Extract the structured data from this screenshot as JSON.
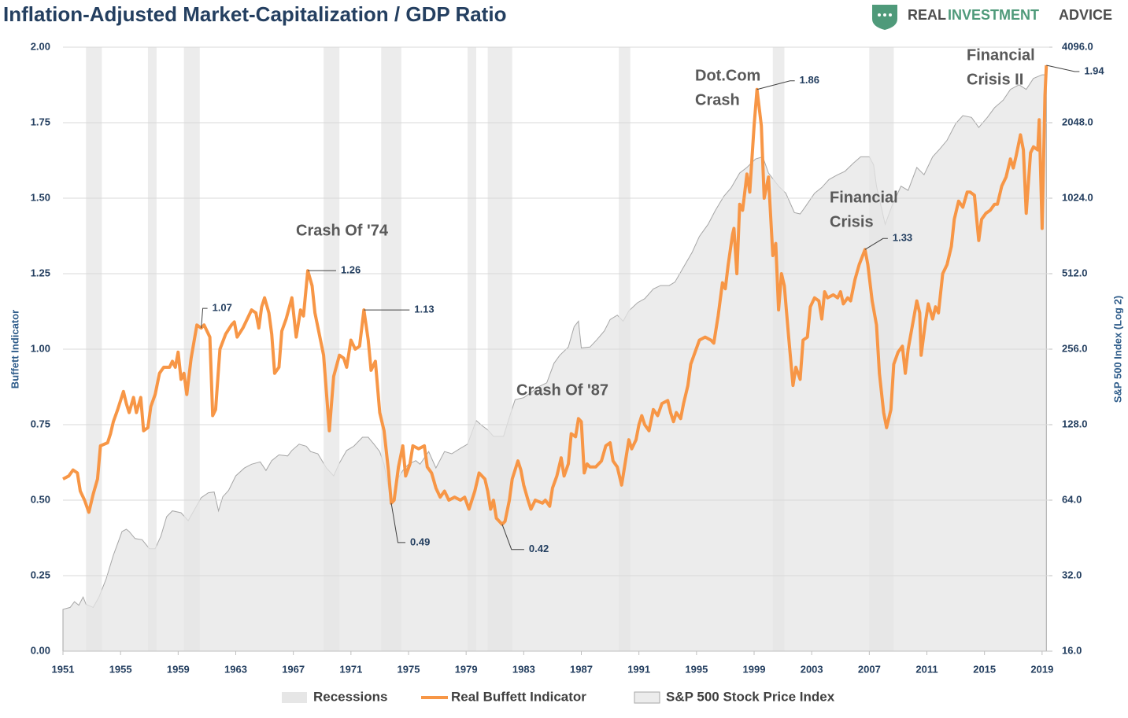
{
  "header": {
    "logo": [
      "REAL",
      "INVESTMENT",
      "ADVICE"
    ]
  },
  "chart_data": {
    "type": "line",
    "title": "Inflation-Adjusted Market-Capitalization / GDP Ratio",
    "ylabel": "Buffett Indicator",
    "y2label": "S&P 500 Index (Log 2)",
    "xlim": [
      1951,
      2019.5
    ],
    "xticks": [
      1951,
      1955,
      1959,
      1963,
      1967,
      1971,
      1975,
      1979,
      1983,
      1987,
      1991,
      1995,
      1999,
      2003,
      2007,
      2011,
      2015,
      2019
    ],
    "ylim": [
      0,
      2
    ],
    "yticks": [
      {
        "value": 0,
        "label": "0.00"
      },
      0.25,
      {
        "value": 0.5,
        "label": "0.50"
      },
      0.75,
      {
        "value": 1,
        "label": "1.00"
      },
      1.25,
      {
        "value": 1.5,
        "label": "1.50"
      },
      1.75,
      {
        "value": 2,
        "label": "2.00"
      }
    ],
    "y2lim": [
      16,
      4096
    ],
    "y2scale": "log",
    "y2ticks": [
      {
        "value": 16,
        "label": "16.0"
      },
      {
        "value": 32,
        "label": "32.0"
      },
      {
        "value": 64,
        "label": "64.0"
      },
      {
        "value": 128,
        "label": "128.0"
      },
      {
        "value": 256,
        "label": "256.0"
      },
      {
        "value": 512,
        "label": "512.0"
      },
      {
        "value": 1024,
        "label": "1024.0"
      },
      {
        "value": 2048,
        "label": "2048.0"
      },
      {
        "value": 4096,
        "label": "4096.0"
      }
    ],
    "grid": true,
    "legend": "bottom",
    "series": [
      {
        "name": "Recessions",
        "type": "band",
        "color": "#e6e6e6",
        "ranges": [
          [
            1952.6,
            1953.7
          ],
          [
            1956.9,
            1957.5
          ],
          [
            1959.4,
            1960.5
          ],
          [
            1969.1,
            1970.2
          ],
          [
            1973.1,
            1974.5
          ],
          [
            1979.1,
            1979.7
          ],
          [
            1980.5,
            1982.2
          ],
          [
            1989.6,
            1990.4
          ],
          [
            2000.3,
            2001.1
          ],
          [
            2007.0,
            2008.7
          ]
        ]
      },
      {
        "name": "Real Buffett Indicator",
        "type": "line",
        "color": "#f79646",
        "x": [
          1951.0,
          1951.4,
          1951.7,
          1952.0,
          1952.2,
          1952.5,
          1952.8,
          1953.1,
          1953.4,
          1953.6,
          1954.1,
          1954.3,
          1954.5,
          1954.8,
          1955.2,
          1955.4,
          1955.6,
          1955.9,
          1956.1,
          1956.4,
          1956.6,
          1956.9,
          1957.1,
          1957.4,
          1957.7,
          1958.0,
          1958.4,
          1958.6,
          1958.8,
          1959.0,
          1959.2,
          1959.4,
          1959.6,
          1959.9,
          1960.3,
          1960.6,
          1960.8,
          1961.2,
          1961.4,
          1961.6,
          1961.9,
          1962.3,
          1962.7,
          1962.9,
          1963.1,
          1963.5,
          1963.8,
          1964.1,
          1964.4,
          1964.6,
          1964.8,
          1965.0,
          1965.3,
          1965.5,
          1965.7,
          1966.0,
          1966.2,
          1966.5,
          1966.9,
          1967.2,
          1967.5,
          1967.7,
          1968.0,
          1968.3,
          1968.5,
          1968.8,
          1969.1,
          1969.5,
          1969.8,
          1970.2,
          1970.5,
          1970.7,
          1971.0,
          1971.3,
          1971.6,
          1971.9,
          1972.2,
          1972.4,
          1972.7,
          1973.0,
          1973.3,
          1973.6,
          1973.8,
          1974.0,
          1974.3,
          1974.6,
          1974.8,
          1975.1,
          1975.3,
          1975.7,
          1976.1,
          1976.3,
          1976.6,
          1976.9,
          1977.2,
          1977.5,
          1977.8,
          1978.2,
          1978.6,
          1978.9,
          1979.2,
          1979.6,
          1979.9,
          1980.3,
          1980.5,
          1980.7,
          1980.9,
          1981.1,
          1981.5,
          1981.7,
          1982.0,
          1982.2,
          1982.6,
          1982.8,
          1983.0,
          1983.3,
          1983.5,
          1983.8,
          1984.3,
          1984.5,
          1984.8,
          1985.0,
          1985.3,
          1985.6,
          1985.8,
          1986.1,
          1986.3,
          1986.6,
          1986.8,
          1987.0,
          1987.2,
          1987.4,
          1987.6,
          1988.0,
          1988.4,
          1988.7,
          1989.0,
          1989.2,
          1989.5,
          1989.8,
          1990.0,
          1990.3,
          1990.5,
          1990.8,
          1991.0,
          1991.2,
          1991.4,
          1991.7,
          1992.0,
          1992.3,
          1992.6,
          1993.0,
          1993.2,
          1993.4,
          1993.6,
          1993.9,
          1994.1,
          1994.4,
          1994.6,
          1994.9,
          1995.2,
          1995.6,
          1996.0,
          1996.2,
          1996.5,
          1996.8,
          1997.0,
          1997.2,
          1997.5,
          1997.6,
          1997.8,
          1998.0,
          1998.2,
          1998.5,
          1998.7,
          1999.0,
          1999.2,
          1999.5,
          1999.7,
          2000.0,
          2000.3,
          2000.5,
          2000.7,
          2000.9,
          2001.1,
          2001.4,
          2001.7,
          2001.9,
          2002.2,
          2002.4,
          2002.7,
          2002.9,
          2003.2,
          2003.5,
          2003.7,
          2003.9,
          2004.1,
          2004.5,
          2004.8,
          2005.0,
          2005.2,
          2005.5,
          2005.7,
          2006.0,
          2006.3,
          2006.7,
          2006.9,
          2007.2,
          2007.5,
          2007.7,
          2008.0,
          2008.2,
          2008.5,
          2008.7,
          2009.0,
          2009.3,
          2009.5,
          2009.7,
          2010.0,
          2010.3,
          2010.5,
          2010.6,
          2010.9,
          2011.1,
          2011.4,
          2011.6,
          2011.8,
          2012.1,
          2012.4,
          2012.7,
          2012.9,
          2013.2,
          2013.5,
          2013.8,
          2014.0,
          2014.3,
          2014.6,
          2014.8,
          2015.1,
          2015.4,
          2015.7,
          2015.9,
          2016.2,
          2016.5,
          2016.8,
          2017.0,
          2017.2,
          2017.5,
          2017.7,
          2017.9,
          2018.2,
          2018.4,
          2018.7,
          2018.8,
          2019.0,
          2019.2,
          2019.3
        ],
        "values": [
          0.57,
          0.58,
          0.6,
          0.59,
          0.53,
          0.5,
          0.46,
          0.52,
          0.57,
          0.68,
          0.69,
          0.72,
          0.76,
          0.8,
          0.86,
          0.82,
          0.79,
          0.84,
          0.79,
          0.84,
          0.73,
          0.74,
          0.81,
          0.85,
          0.92,
          0.94,
          0.94,
          0.96,
          0.94,
          0.99,
          0.9,
          0.92,
          0.85,
          0.97,
          1.08,
          1.07,
          1.08,
          1.04,
          0.78,
          0.8,
          1.0,
          1.05,
          1.08,
          1.09,
          1.04,
          1.07,
          1.1,
          1.13,
          1.12,
          1.07,
          1.14,
          1.17,
          1.12,
          1.05,
          0.92,
          0.94,
          1.06,
          1.1,
          1.17,
          1.04,
          1.13,
          1.11,
          1.26,
          1.21,
          1.12,
          1.05,
          0.98,
          0.73,
          0.91,
          0.98,
          0.97,
          0.94,
          1.03,
          1.0,
          1.01,
          1.13,
          1.03,
          0.93,
          0.96,
          0.79,
          0.73,
          0.6,
          0.49,
          0.5,
          0.61,
          0.68,
          0.58,
          0.62,
          0.68,
          0.67,
          0.68,
          0.61,
          0.59,
          0.54,
          0.51,
          0.53,
          0.5,
          0.51,
          0.5,
          0.51,
          0.47,
          0.53,
          0.59,
          0.57,
          0.53,
          0.47,
          0.5,
          0.44,
          0.42,
          0.43,
          0.5,
          0.57,
          0.63,
          0.6,
          0.55,
          0.5,
          0.47,
          0.5,
          0.49,
          0.5,
          0.48,
          0.54,
          0.58,
          0.64,
          0.58,
          0.62,
          0.72,
          0.71,
          0.77,
          0.76,
          0.59,
          0.62,
          0.61,
          0.61,
          0.63,
          0.68,
          0.69,
          0.63,
          0.61,
          0.55,
          0.61,
          0.7,
          0.67,
          0.7,
          0.75,
          0.78,
          0.75,
          0.73,
          0.8,
          0.78,
          0.82,
          0.83,
          0.79,
          0.76,
          0.79,
          0.77,
          0.82,
          0.88,
          0.95,
          0.99,
          1.03,
          1.04,
          1.03,
          1.02,
          1.11,
          1.22,
          1.2,
          1.28,
          1.38,
          1.4,
          1.25,
          1.48,
          1.46,
          1.58,
          1.52,
          1.74,
          1.86,
          1.74,
          1.5,
          1.57,
          1.31,
          1.35,
          1.13,
          1.25,
          1.21,
          1.04,
          0.88,
          0.94,
          0.9,
          1.03,
          1.04,
          1.14,
          1.17,
          1.16,
          1.1,
          1.19,
          1.17,
          1.18,
          1.17,
          1.19,
          1.15,
          1.17,
          1.16,
          1.23,
          1.28,
          1.33,
          1.28,
          1.16,
          1.08,
          0.92,
          0.79,
          0.74,
          0.8,
          0.95,
          0.99,
          1.01,
          0.92,
          1.0,
          1.08,
          1.16,
          1.12,
          0.98,
          1.09,
          1.15,
          1.1,
          1.14,
          1.12,
          1.25,
          1.28,
          1.34,
          1.43,
          1.49,
          1.47,
          1.52,
          1.52,
          1.51,
          1.36,
          1.43,
          1.45,
          1.46,
          1.48,
          1.48,
          1.54,
          1.57,
          1.63,
          1.6,
          1.64,
          1.71,
          1.66,
          1.45,
          1.65,
          1.67,
          1.66,
          1.76,
          1.4,
          1.84,
          1.94
        ]
      },
      {
        "name": "S&P 500 Stock Price Index",
        "type": "area",
        "axis": "y2",
        "color": "#ececec",
        "x": [
          1951.0,
          1951.5,
          1951.8,
          1952.1,
          1952.4,
          1952.6,
          1953.1,
          1953.5,
          1954.0,
          1954.5,
          1954.8,
          1955.1,
          1955.4,
          1955.6,
          1956.0,
          1956.5,
          1957.0,
          1957.4,
          1957.8,
          1958.2,
          1958.6,
          1959.2,
          1959.7,
          1960.6,
          1961.1,
          1961.5,
          1961.8,
          1962.1,
          1962.5,
          1963.0,
          1963.6,
          1964.1,
          1964.7,
          1965.1,
          1965.5,
          1966.0,
          1966.6,
          1966.9,
          1967.4,
          1967.9,
          1968.2,
          1968.7,
          1969.3,
          1969.8,
          1970.2,
          1970.7,
          1971.2,
          1971.8,
          1972.2,
          1972.6,
          1973.0,
          1973.3,
          1973.6,
          1973.8,
          1974.2,
          1974.6,
          1975.0,
          1975.5,
          1975.8,
          1976.4,
          1976.9,
          1977.5,
          1978.0,
          1978.6,
          1979.1,
          1979.7,
          1980.1,
          1980.5,
          1980.9,
          1981.6,
          1982.0,
          1982.4,
          1983.0,
          1983.5,
          1984.0,
          1984.6,
          1985.1,
          1985.5,
          1986.1,
          1986.5,
          1986.8,
          1987.0,
          1987.6,
          1988.1,
          1988.6,
          1989.0,
          1989.5,
          1989.9,
          1990.3,
          1990.9,
          1991.4,
          1992.0,
          1992.5,
          1993.1,
          1993.5,
          1994.1,
          1994.7,
          1995.2,
          1995.8,
          1996.3,
          1996.9,
          1997.4,
          1998.0,
          1998.5,
          1999.1,
          1999.6,
          2000.0,
          2000.7,
          2001.2,
          2001.8,
          2002.2,
          2002.6,
          2003.2,
          2003.7,
          2004.2,
          2004.8,
          2005.3,
          2005.9,
          2006.4,
          2007.0,
          2007.3,
          2007.5,
          2008.1,
          2008.6,
          2009.2,
          2009.7,
          2010.3,
          2010.8,
          2011.4,
          2011.9,
          2012.4,
          2013.0,
          2013.5,
          2014.1,
          2014.6,
          2015.2,
          2015.7,
          2016.3,
          2016.8,
          2017.4,
          2017.9,
          2018.4,
          2019.0,
          2019.3
        ],
        "values": [
          23.5,
          23.9,
          25.2,
          24.4,
          26.3,
          24.6,
          23.9,
          26.3,
          31.1,
          38.6,
          43,
          48,
          49,
          48,
          45,
          44.5,
          41,
          41,
          46,
          55,
          58,
          57,
          53,
          65.5,
          68.5,
          69,
          58,
          66,
          70,
          80,
          86,
          89,
          91,
          84,
          92,
          97,
          96,
          101,
          107,
          105,
          100,
          98,
          86,
          80,
          90,
          101,
          105,
          114,
          114,
          107,
          100,
          89,
          72,
          61,
          77,
          84,
          89,
          92,
          89,
          100,
          86,
          100,
          98,
          103,
          107,
          133,
          127,
          122,
          115,
          115,
          137,
          161,
          164,
          172,
          181,
          188,
          225,
          242,
          261,
          315,
          331,
          259,
          261,
          280,
          303,
          336,
          350,
          331,
          364,
          392,
          407,
          445,
          459,
          459,
          474,
          544,
          624,
          721,
          805,
          913,
          1043,
          1125,
          1290,
          1358,
          1467,
          1497,
          1290,
          1144,
          1072,
          897,
          886,
          955,
          1072,
          1130,
          1215,
          1270,
          1310,
          1413,
          1497,
          1497,
          1390,
          1144,
          805,
          962,
          1144,
          1100,
          1358,
          1270,
          1497,
          1610,
          1742,
          2030,
          2185,
          2150,
          1960,
          2150,
          2350,
          2520,
          2780,
          2900,
          2780,
          3075,
          3180,
          3180
        ]
      }
    ],
    "annotations": [
      {
        "lines": [
          "Crash Of '74"
        ]
      },
      {
        "lines": [
          "Crash Of '87"
        ]
      },
      {
        "lines": [
          "Dot.Com",
          "Crash"
        ]
      },
      {
        "lines": [
          "Financial",
          "Crisis"
        ]
      },
      {
        "lines": [
          "Financial",
          "Crisis II"
        ]
      }
    ],
    "callouts": [
      {
        "x": 1960.6,
        "value": 1.07
      },
      {
        "x": 1968.0,
        "value": 1.26
      },
      {
        "x": 1971.9,
        "value": 1.13
      },
      {
        "x": 1973.8,
        "value": 0.49
      },
      {
        "x": 1981.5,
        "value": 0.42
      },
      {
        "x": 1999.2,
        "value": 1.86
      },
      {
        "x": 2006.7,
        "value": 1.33
      },
      {
        "x": 2019.3,
        "value": 1.94
      }
    ]
  }
}
